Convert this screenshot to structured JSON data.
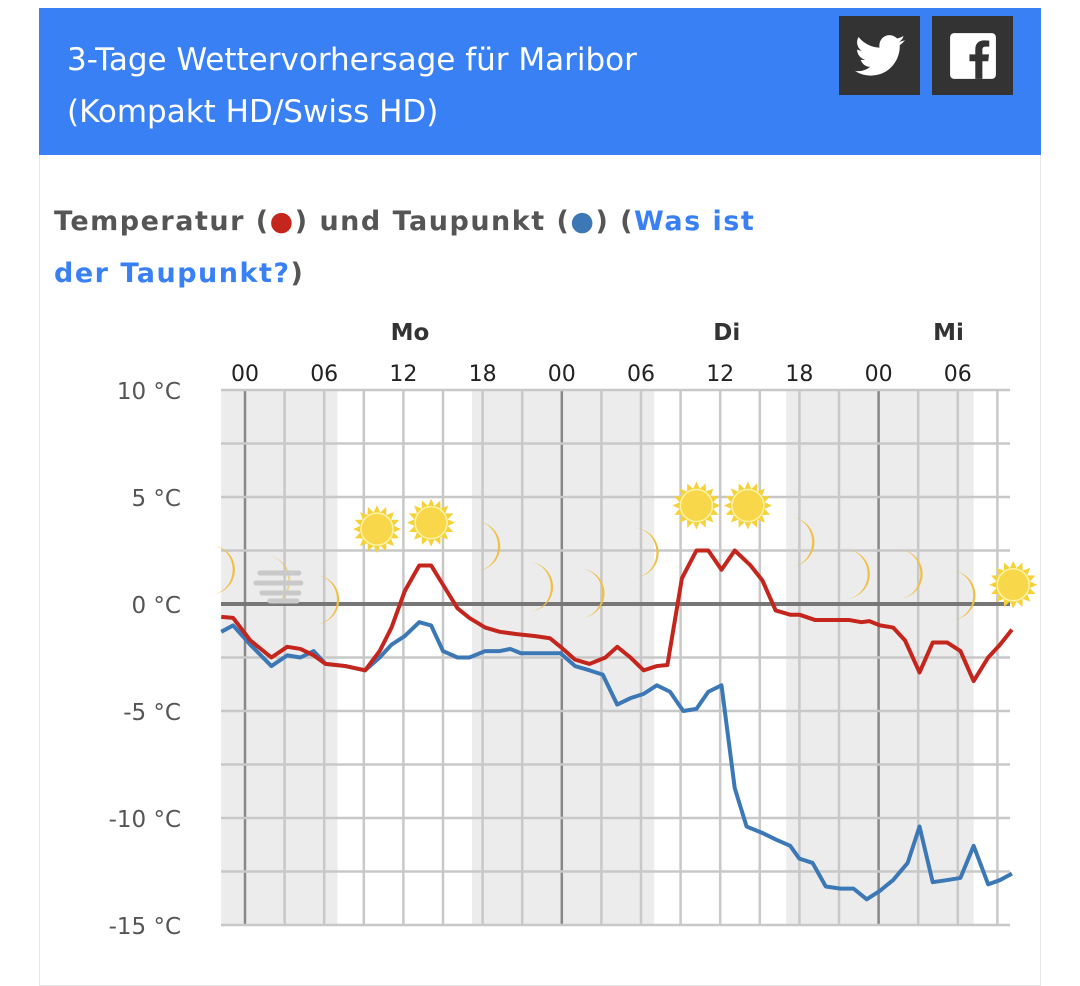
{
  "header": {
    "title_line1": "3-Tage Wettervorhersage für Maribor",
    "title_line2": "(Kompakt HD/Swiss HD)",
    "twitter_icon": "twitter-bird-icon",
    "facebook_icon": "facebook-f-icon",
    "background": "#3a80f5"
  },
  "section": {
    "heading_part1": "Temperatur (",
    "temp_dot": "●",
    "heading_part2": ") und Taupunkt (",
    "dew_dot": "●",
    "heading_part3": ") (",
    "link": "Was ist der Taupunkt?",
    "heading_part4": ")"
  },
  "chart_data": {
    "type": "line",
    "title": "Temperatur und Taupunkt",
    "ylabel": "°C",
    "ylim": [
      -15,
      10
    ],
    "xlim_hours": [
      -1.8,
      58.3
    ],
    "y_ticks": [
      {
        "value": 10,
        "label": "10 °C"
      },
      {
        "value": 5,
        "label": "5 °C"
      },
      {
        "value": 0,
        "label": "0 °C"
      },
      {
        "value": -5,
        "label": "-5 °C"
      },
      {
        "value": -10,
        "label": "-10 °C"
      },
      {
        "value": -15,
        "label": "-15 °C"
      }
    ],
    "x_ticks": [
      {
        "hour": 0,
        "label": "00"
      },
      {
        "hour": 6,
        "label": "06"
      },
      {
        "hour": 12,
        "label": "12"
      },
      {
        "hour": 18,
        "label": "18"
      },
      {
        "hour": 24,
        "label": "00"
      },
      {
        "hour": 30,
        "label": "06"
      },
      {
        "hour": 36,
        "label": "12"
      },
      {
        "hour": 42,
        "label": "18"
      },
      {
        "hour": 48,
        "label": "00"
      },
      {
        "hour": 54,
        "label": "06"
      }
    ],
    "days": [
      {
        "hour": 12.5,
        "label": "Mo"
      },
      {
        "hour": 36.5,
        "label": "Di"
      },
      {
        "hour": 53.3,
        "label": "Mi"
      }
    ],
    "night_periods": [
      [
        -1.8,
        7
      ],
      [
        17.2,
        31
      ],
      [
        41,
        55.2
      ]
    ],
    "grid": true,
    "series": [
      {
        "name": "Temperatur",
        "color": "#c4261d",
        "points": [
          [
            -1.8,
            -0.6
          ],
          [
            -0.9,
            -0.65
          ],
          [
            0.4,
            -1.7
          ],
          [
            2,
            -2.5
          ],
          [
            3.2,
            -2
          ],
          [
            4.2,
            -2.1
          ],
          [
            5.2,
            -2.4
          ],
          [
            6.1,
            -2.8
          ],
          [
            7.6,
            -2.9
          ],
          [
            9.1,
            -3.1
          ],
          [
            10.2,
            -2.2
          ],
          [
            11.1,
            -1.1
          ],
          [
            12.1,
            0.6
          ],
          [
            13.2,
            1.8
          ],
          [
            14.1,
            1.8
          ],
          [
            15,
            0.9
          ],
          [
            16.1,
            -0.2
          ],
          [
            17,
            -0.65
          ],
          [
            18.2,
            -1.1
          ],
          [
            19.3,
            -1.3
          ],
          [
            20.5,
            -1.4
          ],
          [
            22,
            -1.5
          ],
          [
            23.1,
            -1.6
          ],
          [
            23.9,
            -2
          ],
          [
            25,
            -2.6
          ],
          [
            26.1,
            -2.8
          ],
          [
            27.3,
            -2.5
          ],
          [
            28.2,
            -2
          ],
          [
            29.2,
            -2.5
          ],
          [
            30.2,
            -3.1
          ],
          [
            31.2,
            -2.9
          ],
          [
            32,
            -2.85
          ],
          [
            33.1,
            1.2
          ],
          [
            34.2,
            2.5
          ],
          [
            35.1,
            2.5
          ],
          [
            36.1,
            1.6
          ],
          [
            37.1,
            2.5
          ],
          [
            38.3,
            1.8
          ],
          [
            39.2,
            1.1
          ],
          [
            40.2,
            -0.3
          ],
          [
            41.3,
            -0.5
          ],
          [
            42,
            -0.5
          ],
          [
            43.2,
            -0.75
          ],
          [
            44.3,
            -0.75
          ],
          [
            45.8,
            -0.75
          ],
          [
            46.7,
            -0.85
          ],
          [
            47.3,
            -0.8
          ],
          [
            48.1,
            -1
          ],
          [
            49.1,
            -1.1
          ],
          [
            50,
            -1.7
          ],
          [
            51.1,
            -3.2
          ],
          [
            52.1,
            -1.8
          ],
          [
            53.2,
            -1.8
          ],
          [
            54.2,
            -2.2
          ],
          [
            55.2,
            -3.6
          ],
          [
            56.3,
            -2.5
          ],
          [
            57.2,
            -1.9
          ],
          [
            58.1,
            -1.2
          ]
        ]
      },
      {
        "name": "Taupunkt",
        "color": "#3d78b6",
        "points": [
          [
            -1.8,
            -1.3
          ],
          [
            -0.9,
            -1
          ],
          [
            0.4,
            -1.9
          ],
          [
            2,
            -2.9
          ],
          [
            3.2,
            -2.4
          ],
          [
            4.2,
            -2.5
          ],
          [
            5.2,
            -2.2
          ],
          [
            6.1,
            -2.8
          ],
          [
            7.6,
            -2.9
          ],
          [
            9.1,
            -3.1
          ],
          [
            10.2,
            -2.5
          ],
          [
            11.1,
            -1.9
          ],
          [
            12.1,
            -1.5
          ],
          [
            13.2,
            -0.85
          ],
          [
            14.1,
            -1
          ],
          [
            15,
            -2.2
          ],
          [
            16.1,
            -2.5
          ],
          [
            17,
            -2.5
          ],
          [
            18.2,
            -2.2
          ],
          [
            19.3,
            -2.2
          ],
          [
            20.1,
            -2.1
          ],
          [
            20.9,
            -2.3
          ],
          [
            22,
            -2.3
          ],
          [
            23.9,
            -2.3
          ],
          [
            25,
            -2.9
          ],
          [
            26.1,
            -3.1
          ],
          [
            27.1,
            -3.3
          ],
          [
            28.2,
            -4.7
          ],
          [
            29.2,
            -4.4
          ],
          [
            30.2,
            -4.2
          ],
          [
            31.2,
            -3.8
          ],
          [
            32.2,
            -4.1
          ],
          [
            33.2,
            -5
          ],
          [
            34.2,
            -4.9
          ],
          [
            35.1,
            -4.1
          ],
          [
            36.1,
            -3.8
          ],
          [
            37.1,
            -8.6
          ],
          [
            38,
            -10.4
          ],
          [
            39.2,
            -10.7
          ],
          [
            40.2,
            -11
          ],
          [
            41.3,
            -11.3
          ],
          [
            42,
            -11.9
          ],
          [
            43,
            -12.1
          ],
          [
            44,
            -13.2
          ],
          [
            45.1,
            -13.3
          ],
          [
            46.1,
            -13.3
          ],
          [
            47.1,
            -13.8
          ],
          [
            48.1,
            -13.4
          ],
          [
            49.1,
            -12.9
          ],
          [
            50.2,
            -12.1
          ],
          [
            51.1,
            -10.4
          ],
          [
            52.1,
            -13
          ],
          [
            53.2,
            -12.9
          ],
          [
            54.2,
            -12.8
          ],
          [
            55.2,
            -11.3
          ],
          [
            56.3,
            -13.1
          ],
          [
            57.2,
            -12.9
          ],
          [
            58.1,
            -12.6
          ]
        ]
      }
    ],
    "symbols": [
      {
        "hour": -1.9,
        "level": 1.6,
        "type": "moon"
      },
      {
        "hour": 2.3,
        "level": 1.1,
        "type": "fog-moon"
      },
      {
        "hour": 6,
        "level": 0.2,
        "type": "moon"
      },
      {
        "hour": 10,
        "level": 3.5,
        "type": "sun"
      },
      {
        "hour": 14.1,
        "level": 3.8,
        "type": "sun"
      },
      {
        "hour": 18.2,
        "level": 2.7,
        "type": "moon"
      },
      {
        "hour": 22.2,
        "level": 0.8,
        "type": "moon"
      },
      {
        "hour": 26.1,
        "level": 0.5,
        "type": "moon"
      },
      {
        "hour": 30.2,
        "level": 2.4,
        "type": "moon"
      },
      {
        "hour": 34.2,
        "level": 4.6,
        "type": "sun"
      },
      {
        "hour": 38.1,
        "level": 4.6,
        "type": "sun"
      },
      {
        "hour": 42,
        "level": 2.9,
        "type": "moon"
      },
      {
        "hour": 46.2,
        "level": 1.4,
        "type": "moon"
      },
      {
        "hour": 50.2,
        "level": 1.4,
        "type": "moon"
      },
      {
        "hour": 54.2,
        "level": 0.4,
        "type": "moon"
      },
      {
        "hour": 58.2,
        "level": 0.9,
        "type": "sun"
      }
    ]
  }
}
